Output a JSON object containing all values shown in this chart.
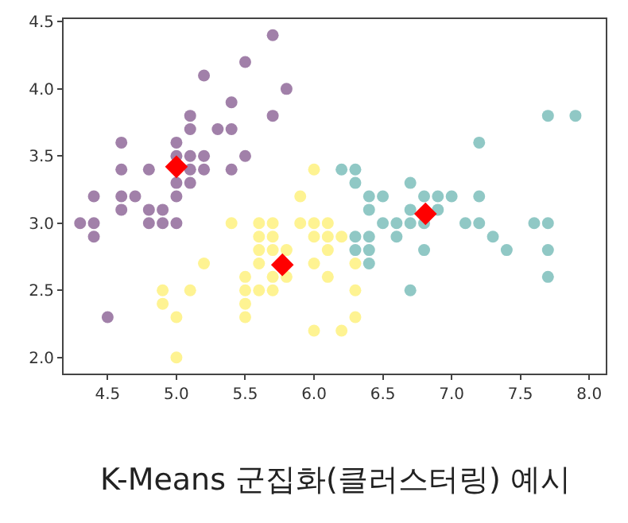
{
  "chart_data": {
    "type": "scatter",
    "annotations": [
      "K-Means 군집화(클러스터링) 예시"
    ],
    "xlim": [
      4.18,
      8.12
    ],
    "xticks": [
      4.5,
      {
        "value": 5,
        "label": "5.0"
      },
      5.5,
      {
        "value": 6,
        "label": "6.0"
      },
      6.5,
      {
        "value": 7,
        "label": "7.0"
      },
      7.5,
      {
        "value": 8,
        "label": "8.0"
      }
    ],
    "ylim": [
      1.88,
      4.52
    ],
    "yticks": [
      {
        "value": 2,
        "label": "2.0"
      },
      2.5,
      {
        "value": 3,
        "label": "3.0"
      },
      3.5,
      {
        "value": 4,
        "label": "4.0"
      },
      4.5
    ],
    "grid": false,
    "marker": "circle",
    "series": [
      {
        "color": "#a180a9",
        "x": [
          4.3,
          4.4,
          4.4,
          4.4,
          4.5,
          4.6,
          4.6,
          4.6,
          4.6,
          4.7,
          4.8,
          4.8,
          4.8,
          4.9,
          4.9,
          5.0,
          5.0,
          5.0,
          5.0,
          5.0,
          5.1,
          5.1,
          5.1,
          5.1,
          5.1,
          5.2,
          5.2,
          5.2,
          5.3,
          5.4,
          5.4,
          5.4,
          5.5,
          5.5,
          5.7,
          5.7,
          5.8
        ],
        "values": [
          3.0,
          3.0,
          2.9,
          3.2,
          2.3,
          3.1,
          3.2,
          3.4,
          3.6,
          3.2,
          3.0,
          3.1,
          3.4,
          3.0,
          3.1,
          3.0,
          3.2,
          3.3,
          3.5,
          3.6,
          3.3,
          3.4,
          3.5,
          3.7,
          3.8,
          3.4,
          3.5,
          4.1,
          3.7,
          3.4,
          3.7,
          3.9,
          3.5,
          4.2,
          3.8,
          4.4,
          4.0
        ]
      },
      {
        "color": "#90c8c5",
        "x": [
          6.2,
          6.3,
          6.3,
          6.4,
          6.4,
          6.5,
          6.4,
          6.4,
          6.4,
          6.3,
          6.3,
          6.5,
          6.6,
          6.6,
          6.7,
          6.7,
          6.7,
          6.7,
          6.8,
          6.8,
          6.8,
          6.9,
          6.9,
          7.0,
          7.1,
          7.2,
          7.2,
          7.2,
          7.3,
          7.4,
          7.6,
          7.7,
          7.7,
          7.7,
          7.7,
          7.9
        ],
        "values": [
          3.4,
          3.4,
          3.3,
          3.2,
          3.1,
          3.2,
          2.9,
          2.8,
          2.7,
          2.9,
          2.8,
          3.0,
          3.0,
          2.9,
          3.0,
          3.1,
          3.3,
          2.5,
          3.0,
          2.8,
          3.2,
          3.1,
          3.2,
          3.2,
          3.0,
          3.0,
          3.2,
          3.6,
          2.9,
          2.8,
          3.0,
          3.0,
          2.8,
          2.6,
          3.8,
          3.8
        ]
      },
      {
        "color": "#fef392",
        "x": [
          4.9,
          4.9,
          5.0,
          5.0,
          5.1,
          5.2,
          5.4,
          5.5,
          5.5,
          5.5,
          5.5,
          5.6,
          5.6,
          5.6,
          5.6,
          5.6,
          5.7,
          5.7,
          5.7,
          5.7,
          5.7,
          5.8,
          5.8,
          5.9,
          5.9,
          6.0,
          6.0,
          6.0,
          6.0,
          6.0,
          6.1,
          6.1,
          6.1,
          6.1,
          6.2,
          6.2,
          6.3,
          6.3,
          6.3
        ],
        "values": [
          2.5,
          2.4,
          2.3,
          2.0,
          2.5,
          2.7,
          3.0,
          2.3,
          2.4,
          2.5,
          2.6,
          2.5,
          2.7,
          2.8,
          2.9,
          3.0,
          2.5,
          2.6,
          2.8,
          2.9,
          3.0,
          2.6,
          2.8,
          3.0,
          3.2,
          2.2,
          2.7,
          2.9,
          3.0,
          3.4,
          2.6,
          2.8,
          2.9,
          3.0,
          2.2,
          2.9,
          2.3,
          2.5,
          2.7
        ]
      },
      {
        "color": "#ff0000",
        "marker": "diamond",
        "x": [
          5.0,
          5.77,
          6.81
        ],
        "values": [
          3.42,
          2.69,
          3.07
        ]
      }
    ]
  }
}
